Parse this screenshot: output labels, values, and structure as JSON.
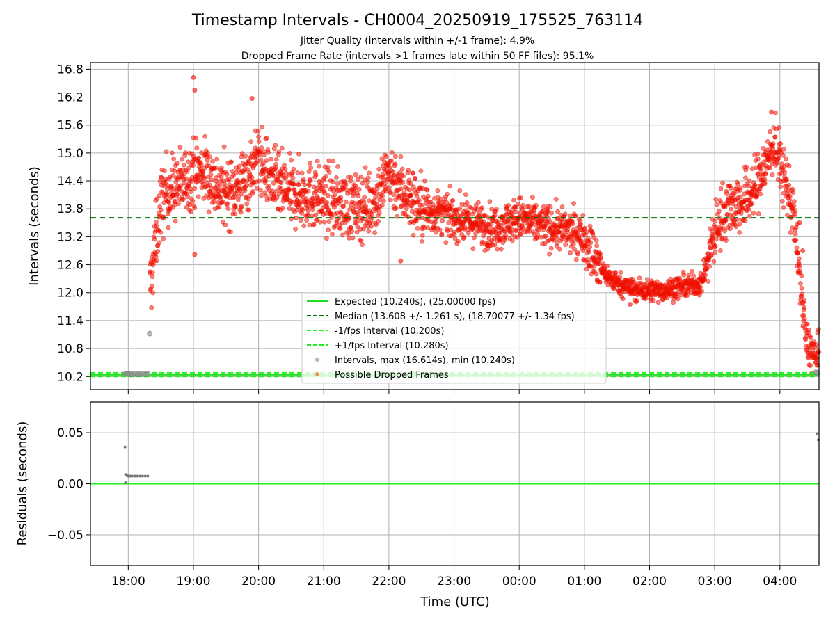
{
  "chart_data": {
    "title": "Timestamp Intervals - CH0004_20250919_175525_763114",
    "subtitles": [
      "Jitter Quality (intervals within +/-1 frame): 4.9%",
      "Dropped Frame Rate (intervals >1 frames late within 50 FF files): 95.1%"
    ],
    "xlabel": "Time (UTC)",
    "x_ticks": [
      "18:00",
      "19:00",
      "20:00",
      "21:00",
      "22:00",
      "23:00",
      "00:00",
      "01:00",
      "02:00",
      "03:00",
      "04:00"
    ],
    "x_range_hours": [
      -0.58,
      10.6
    ],
    "top": {
      "type": "scatter",
      "ylabel": "Intervals (seconds)",
      "ylim": [
        9.92,
        16.94
      ],
      "y_ticks": [
        10.2,
        10.8,
        11.4,
        12.0,
        12.6,
        13.2,
        13.8,
        14.4,
        15.0,
        15.6,
        16.2,
        16.8
      ],
      "grid": true,
      "lines": {
        "expected": 10.24,
        "median": 13.608,
        "minus_fps": 10.2,
        "plus_fps": 10.28
      },
      "legend_placement": "lower-center",
      "legend": [
        {
          "label": "Expected (10.240s), (25.00000 fps)",
          "style": "solid",
          "color": "#22dd22"
        },
        {
          "label": "Median (13.608 +/- 1.261 s), (18.70077 +/- 1.34 fps)",
          "style": "dashed",
          "color": "#007700"
        },
        {
          "label": "-1/fps Interval (10.200s)",
          "style": "dashed",
          "color": "#22ee22"
        },
        {
          "label": "+1/fps Interval (10.280s)",
          "style": "dashed",
          "color": "#22ee22"
        },
        {
          "label": "Intervals, max (16.614s), min (10.240s)",
          "style": "marker",
          "color": "#999999"
        },
        {
          "label": "Possible Dropped Frames",
          "style": "marker",
          "color": "#ee6622"
        }
      ],
      "gray_points": [
        [
          -0.04,
          10.26
        ],
        [
          -0.02,
          10.26
        ],
        [
          0.0,
          10.25
        ],
        [
          0.03,
          10.25
        ],
        [
          0.06,
          10.25
        ],
        [
          0.1,
          10.25
        ],
        [
          0.14,
          10.25
        ],
        [
          0.18,
          10.25
        ],
        [
          0.22,
          10.25
        ],
        [
          0.26,
          10.25
        ],
        [
          0.3,
          10.25
        ],
        [
          0.33,
          11.12
        ],
        [
          10.55,
          10.29
        ],
        [
          10.58,
          10.28
        ]
      ],
      "dropped_trend": [
        [
          0.33,
          12.0
        ],
        [
          0.4,
          12.9
        ],
        [
          0.5,
          13.9
        ],
        [
          0.6,
          14.2
        ],
        [
          0.8,
          14.3
        ],
        [
          1.0,
          14.6
        ],
        [
          1.2,
          14.6
        ],
        [
          1.4,
          14.2
        ],
        [
          1.6,
          14.2
        ],
        [
          1.8,
          14.4
        ],
        [
          2.0,
          14.9
        ],
        [
          2.2,
          14.4
        ],
        [
          2.5,
          14.1
        ],
        [
          2.8,
          14.1
        ],
        [
          3.0,
          14.0
        ],
        [
          3.3,
          13.9
        ],
        [
          3.5,
          13.8
        ],
        [
          3.8,
          14.0
        ],
        [
          4.0,
          14.6
        ],
        [
          4.2,
          14.2
        ],
        [
          4.5,
          13.8
        ],
        [
          4.8,
          13.7
        ],
        [
          5.0,
          13.6
        ],
        [
          5.3,
          13.5
        ],
        [
          5.6,
          13.4
        ],
        [
          5.8,
          13.5
        ],
        [
          6.0,
          13.6
        ],
        [
          6.2,
          13.5
        ],
        [
          6.5,
          13.4
        ],
        [
          6.8,
          13.3
        ],
        [
          7.0,
          13.2
        ],
        [
          7.2,
          12.6
        ],
        [
          7.4,
          12.3
        ],
        [
          7.6,
          12.15
        ],
        [
          7.8,
          12.05
        ],
        [
          8.0,
          12.05
        ],
        [
          8.2,
          12.05
        ],
        [
          8.4,
          12.1
        ],
        [
          8.6,
          12.15
        ],
        [
          8.8,
          12.2
        ],
        [
          9.0,
          13.3
        ],
        [
          9.2,
          13.9
        ],
        [
          9.4,
          13.9
        ],
        [
          9.6,
          14.2
        ],
        [
          9.8,
          14.8
        ],
        [
          9.9,
          15.2
        ],
        [
          10.0,
          14.8
        ],
        [
          10.1,
          14.3
        ],
        [
          10.2,
          13.8
        ],
        [
          10.3,
          12.4
        ],
        [
          10.4,
          11.0
        ],
        [
          10.5,
          10.7
        ],
        [
          10.6,
          10.6
        ]
      ],
      "dropped_outliers": [
        [
          1.0,
          16.62
        ],
        [
          1.02,
          16.35
        ],
        [
          1.9,
          16.17
        ],
        [
          1.02,
          12.82
        ],
        [
          4.18,
          12.68
        ],
        [
          7.7,
          11.75
        ],
        [
          9.87,
          15.88
        ],
        [
          10.3,
          13.5
        ],
        [
          10.35,
          12.9
        ]
      ]
    },
    "bottom": {
      "type": "scatter",
      "ylabel": "Residuals (seconds)",
      "ylim": [
        -0.08,
        0.08
      ],
      "y_ticks": [
        "0.05",
        "0.00",
        "−0.05"
      ],
      "y_tick_values": [
        0.05,
        0.0,
        -0.05
      ],
      "zero_line_color": "#22ee22",
      "points": [
        [
          -0.05,
          0.036
        ],
        [
          -0.04,
          0.009
        ],
        [
          -0.02,
          0.008
        ],
        [
          0.0,
          0.0075
        ],
        [
          0.03,
          0.0075
        ],
        [
          0.06,
          0.0075
        ],
        [
          0.1,
          0.0075
        ],
        [
          0.14,
          0.0075
        ],
        [
          0.18,
          0.0075
        ],
        [
          0.22,
          0.0075
        ],
        [
          0.26,
          0.0075
        ],
        [
          0.3,
          0.0075
        ],
        [
          -0.04,
          0.001
        ],
        [
          10.57,
          0.049
        ],
        [
          10.59,
          0.043
        ]
      ]
    }
  }
}
